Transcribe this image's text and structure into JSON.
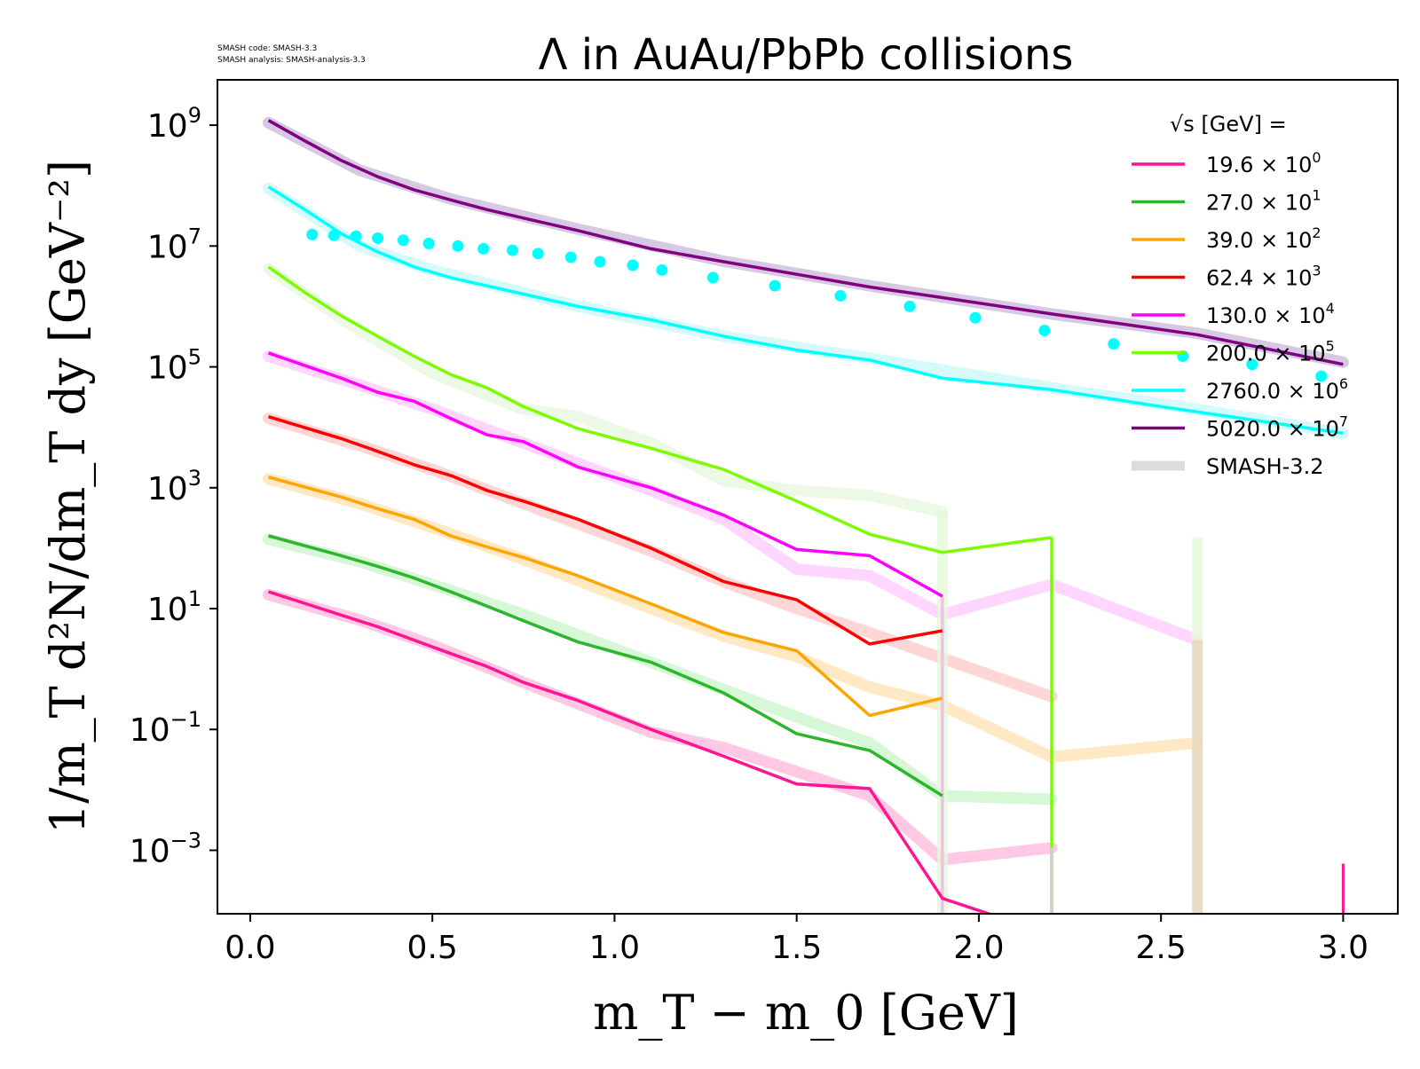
{
  "version_note": {
    "line1": "SMASH code:      SMASH-3.3",
    "line2": "SMASH analysis: SMASH-analysis-3.3"
  },
  "chart_data": {
    "type": "line",
    "title": "Λ in AuAu/PbPb collisions",
    "xlabel": "m_T − m_0 [GeV]",
    "ylabel": "1/m_T d²N/dm_T dy [GeV⁻²]",
    "xlim": [
      -0.09,
      3.15
    ],
    "ylim_log10": [
      -4.05,
      9.75
    ],
    "y_scale": "log",
    "grid": false,
    "legend": {
      "title": "√s [GeV] =",
      "position": "top-right"
    },
    "x_ticks": [
      "0.0",
      "0.5",
      "1.0",
      "1.5",
      "2.0",
      "2.5",
      "3.0"
    ],
    "y_ticks": [
      {
        "base": "10",
        "exp": "9",
        "log10": 9
      },
      {
        "base": "10",
        "exp": "7",
        "log10": 7
      },
      {
        "base": "10",
        "exp": "5",
        "log10": 5
      },
      {
        "base": "10",
        "exp": "3",
        "log10": 3
      },
      {
        "base": "10",
        "exp": "1",
        "log10": 1
      },
      {
        "base": "10",
        "exp": "−1",
        "log10": -1
      },
      {
        "base": "10",
        "exp": "−3",
        "log10": -3
      }
    ],
    "series": [
      {
        "name": "19.6 × 10⁰",
        "label_main": "19.6",
        "label_exp": "0",
        "color": "#ff1493",
        "x": [
          0.05,
          0.25,
          0.35,
          0.45,
          0.55,
          0.65,
          0.75,
          0.9,
          1.1,
          1.3,
          1.5,
          1.7,
          1.9,
          2.2
        ],
        "y": [
          19.0,
          7.8,
          5.0,
          3.0,
          1.8,
          1.1,
          0.6,
          0.3,
          0.1,
          0.036,
          0.0125,
          0.0105,
          0.00016,
          4e-05
        ]
      },
      {
        "name": "27.0 × 10¹",
        "label_main": "27.0",
        "label_exp": "1",
        "color": "#2db52d",
        "x": [
          0.05,
          0.25,
          0.35,
          0.45,
          0.55,
          0.65,
          0.75,
          0.9,
          1.1,
          1.3,
          1.5,
          1.7,
          1.9
        ],
        "y": [
          160.0,
          75,
          50,
          32,
          19,
          11,
          6.3,
          2.8,
          1.3,
          0.4,
          0.085,
          0.045,
          0.008
        ]
      },
      {
        "name": "39.0 × 10²",
        "label_main": "39.0",
        "label_exp": "2",
        "color": "#ffa500",
        "x": [
          0.05,
          0.25,
          0.35,
          0.45,
          0.55,
          0.65,
          0.75,
          0.9,
          1.1,
          1.3,
          1.5,
          1.7,
          1.9
        ],
        "y": [
          1500.0,
          700,
          450,
          300,
          160,
          105,
          70,
          35,
          12,
          4.0,
          2.0,
          0.17,
          0.33
        ]
      },
      {
        "name": "62.4 × 10³",
        "label_main": "62.4",
        "label_exp": "3",
        "color": "#ff0000",
        "x": [
          0.05,
          0.25,
          0.35,
          0.45,
          0.55,
          0.65,
          0.75,
          0.9,
          1.1,
          1.3,
          1.5,
          1.7,
          1.9
        ],
        "y": [
          15000.0,
          6500,
          4000,
          2400,
          1600,
          900,
          600,
          300,
          100,
          28,
          14,
          2.6,
          4.3
        ]
      },
      {
        "name": "130.0 × 10⁴",
        "label_main": "130.0",
        "label_exp": "4",
        "color": "#ff00ff",
        "x": [
          0.05,
          0.25,
          0.35,
          0.45,
          0.55,
          0.65,
          0.75,
          0.9,
          1.1,
          1.3,
          1.5,
          1.7,
          1.9
        ],
        "y": [
          170000.0,
          65000,
          38000,
          27000,
          14000,
          7500,
          5800,
          2200,
          1000,
          350,
          95,
          75,
          16
        ]
      },
      {
        "name": "200.0 × 10⁵",
        "label_main": "200.0",
        "label_exp": "5",
        "color": "#7cfc00",
        "x": [
          0.05,
          0.15,
          0.25,
          0.35,
          0.45,
          0.55,
          0.65,
          0.75,
          0.9,
          1.1,
          1.3,
          1.5,
          1.7,
          1.9,
          2.2
        ],
        "y": [
          4500000.0,
          1700000.0,
          700000.0,
          320000.0,
          150000.0,
          75000.0,
          45000.0,
          22000.0,
          9500,
          4500,
          2000,
          600,
          170,
          85,
          150
        ]
      },
      {
        "name": "2760.0 × 10⁶",
        "label_main": "2760.0",
        "label_exp": "6",
        "color": "#00ffff",
        "x": [
          0.05,
          0.15,
          0.25,
          0.35,
          0.45,
          0.55,
          0.75,
          0.9,
          1.1,
          1.3,
          1.5,
          1.7,
          1.9,
          2.2,
          2.5,
          3.0
        ],
        "y": [
          95000000.0,
          40000000.0,
          16000000.0,
          8000000.0,
          4500000.0,
          3000000.0,
          1600000.0,
          1000000.0,
          600000.0,
          320000.0,
          190000.0,
          130000.0,
          65000.0,
          42000.0,
          22000.0,
          8000.0
        ]
      },
      {
        "name": "5020.0 × 10⁷",
        "label_main": "5020.0",
        "label_exp": "7",
        "color": "#800080",
        "x": [
          0.05,
          0.15,
          0.25,
          0.35,
          0.45,
          0.55,
          0.65,
          0.75,
          0.9,
          1.1,
          1.3,
          1.5,
          1.7,
          1.9,
          2.2,
          2.6,
          3.0
        ],
        "y": [
          1200000000.0,
          550000000.0,
          260000000.0,
          140000000.0,
          85000000.0,
          58000000.0,
          40000000.0,
          29000000.0,
          18000000.0,
          9000000.0,
          5500000.0,
          3400000.0,
          2100000.0,
          1400000.0,
          750000.0,
          340000.0,
          110000.0
        ]
      },
      {
        "name": "SMASH-3.2",
        "color": "#dcdcdc"
      }
    ],
    "reference_series": [
      {
        "color": "#ffb6d9",
        "x": [
          0.05,
          0.3,
          0.5,
          0.75,
          1.1,
          1.3,
          1.5,
          1.7,
          1.9,
          2.2
        ],
        "y": [
          17.0,
          6.5,
          2.5,
          0.6,
          0.09,
          0.05,
          0.02,
          0.008,
          0.0007,
          0.0011
        ]
      },
      {
        "color": "#c8f5c8",
        "x": [
          0.05,
          0.3,
          0.5,
          0.75,
          1.1,
          1.5,
          1.7,
          1.9,
          2.2
        ],
        "y": [
          140.0,
          60,
          25,
          8,
          1.3,
          0.16,
          0.06,
          0.008,
          0.007
        ]
      },
      {
        "color": "#ffe0b0",
        "x": [
          0.05,
          0.3,
          0.5,
          0.75,
          1.1,
          1.3,
          1.5,
          1.7,
          1.9,
          2.2,
          2.6
        ],
        "y": [
          1400.0,
          550,
          220,
          65,
          10,
          3.5,
          1.6,
          0.5,
          0.25,
          0.035,
          0.06
        ]
      },
      {
        "color": "#ffc8c8",
        "x": [
          0.05,
          0.3,
          0.5,
          0.75,
          1.1,
          1.3,
          1.5,
          1.7,
          1.9,
          2.2
        ],
        "y": [
          14000.0,
          5000,
          2000,
          550,
          90,
          28,
          10,
          4.0,
          1.5,
          0.35
        ]
      },
      {
        "color": "#ffc8ff",
        "x": [
          0.05,
          0.3,
          0.5,
          0.75,
          1.1,
          1.3,
          1.5,
          1.7,
          1.9,
          2.2,
          2.6
        ],
        "y": [
          150000.0,
          50000.0,
          20000.0,
          5500.0,
          900,
          300,
          45,
          35,
          8,
          25,
          3
        ]
      },
      {
        "color": "#e6f8dc",
        "x": [
          0.05,
          0.3,
          0.5,
          0.75,
          0.9,
          1.1,
          1.3,
          1.5,
          1.7,
          1.9
        ],
        "y": [
          4200000.0,
          400000.0,
          80000.0,
          20000.0,
          15000.0,
          5500.0,
          1300.0,
          900,
          750,
          400
        ]
      },
      {
        "color": "#c8f8f8",
        "x": [
          0.05,
          0.3,
          0.5,
          0.9,
          1.3,
          1.7,
          2.2,
          2.6,
          3.0
        ],
        "y": [
          90000000.0,
          10000000.0,
          4000000.0,
          1000000.0,
          320000.0,
          140000.0,
          45000.0,
          20000.0,
          8000.0
        ]
      },
      {
        "color": "#c9b6d9",
        "x": [
          0.05,
          0.3,
          0.55,
          0.9,
          1.3,
          1.7,
          2.2,
          2.6,
          3.0
        ],
        "y": [
          1100000000.0,
          180000000.0,
          60000000.0,
          19000000.0,
          5600000.0,
          2200000.0,
          750000.0,
          360000.0,
          120000.0
        ]
      }
    ],
    "drops": [
      {
        "color": "#ff00ff",
        "x": 1.9,
        "y_from": 16
      },
      {
        "color": "#7cfc00",
        "x": 2.2,
        "y_from": 150
      },
      {
        "color": "#ff1493",
        "x": 3.0,
        "y_from": 0.0006,
        "isolated": true
      },
      {
        "color": "#e6f8dc",
        "x": 1.9,
        "y_from": 400,
        "wide": true
      },
      {
        "color": "#e6f8dc",
        "x": 2.6,
        "y_from": 150,
        "wide": true
      },
      {
        "color": "#e8d6bd",
        "x": 2.6,
        "y_from": 3,
        "wide": true
      },
      {
        "color": "#d0d0d0",
        "x": 2.2,
        "y_from": 0.0011,
        "wide": false
      }
    ],
    "experimental_points": {
      "color": "#00ffff",
      "x": [
        0.17,
        0.23,
        0.29,
        0.35,
        0.42,
        0.49,
        0.57,
        0.64,
        0.72,
        0.79,
        0.88,
        0.96,
        1.05,
        1.13,
        1.27,
        1.44,
        1.62,
        1.81,
        1.99,
        2.18,
        2.37,
        2.56,
        2.75,
        2.94
      ],
      "y": [
        15500000.0,
        15000000.0,
        14500000.0,
        13500000.0,
        12500000.0,
        11000000.0,
        10000000.0,
        9000000.0,
        8500000.0,
        7500000.0,
        6500000.0,
        5500000.0,
        4800000.0,
        4000000.0,
        3000000.0,
        2200000.0,
        1500000.0,
        1000000.0,
        650000.0,
        400000.0,
        240000.0,
        150000.0,
        110000.0,
        70000.0
      ]
    }
  }
}
